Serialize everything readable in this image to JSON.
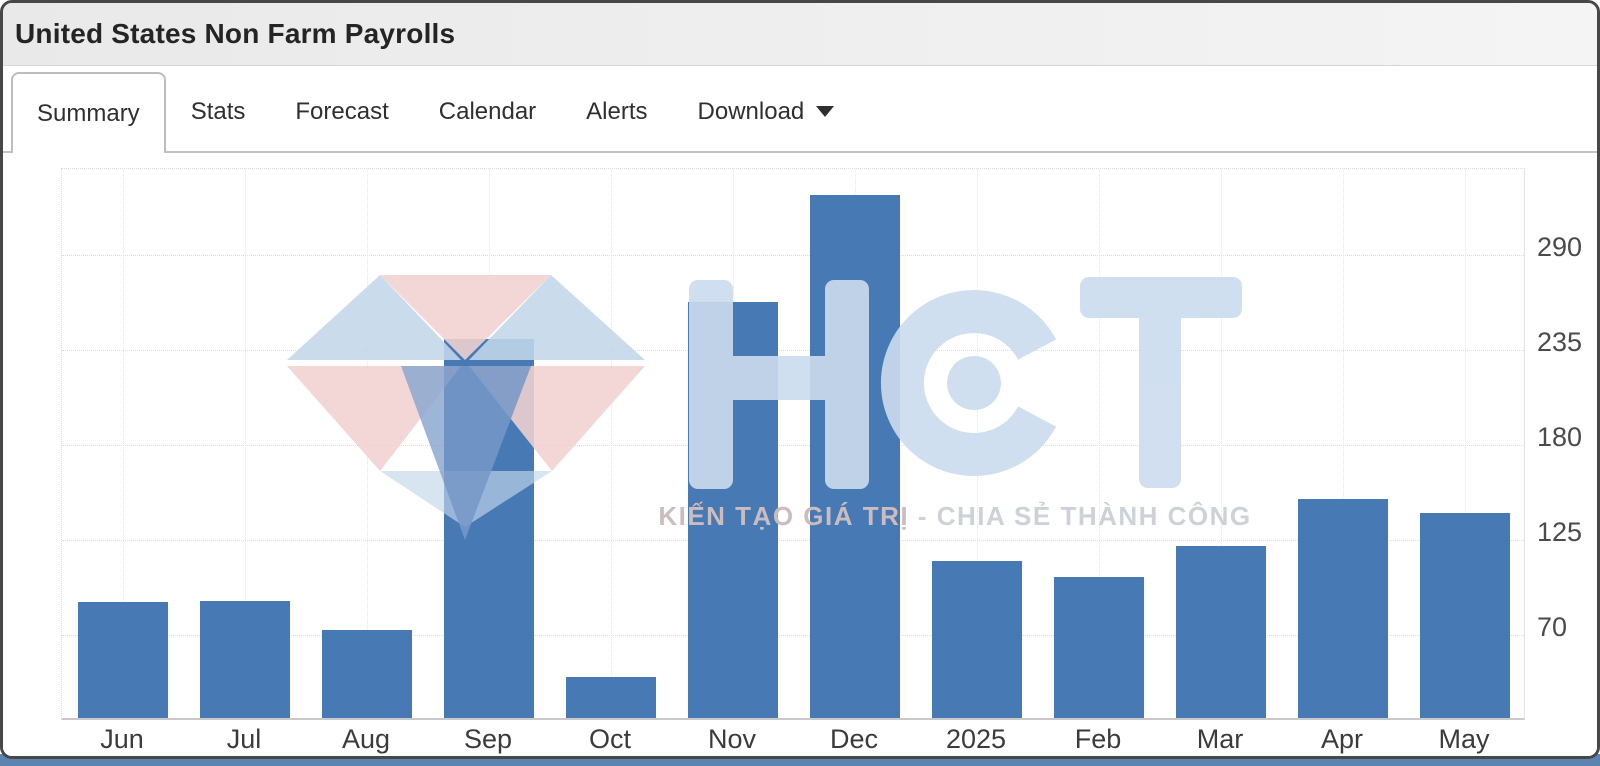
{
  "window": {
    "title": "United States Non Farm Payrolls"
  },
  "tabs": [
    {
      "label": "Summary",
      "active": true
    },
    {
      "label": "Stats",
      "active": false
    },
    {
      "label": "Forecast",
      "active": false
    },
    {
      "label": "Calendar",
      "active": false
    },
    {
      "label": "Alerts",
      "active": false
    },
    {
      "label": "Download",
      "active": false,
      "has_dropdown": true
    }
  ],
  "watermark": {
    "brand": "HCT",
    "tagline_left": "KIẾN TẠO GIÁ TRỊ",
    "tagline_right": "- CHIA SẺ THÀNH CÔNG"
  },
  "chart_data": {
    "type": "bar",
    "title": "United States Non Farm Payrolls",
    "categories": [
      "Jun",
      "Jul",
      "Aug",
      "Sep",
      "Oct",
      "Nov",
      "Dec",
      "2025",
      "Feb",
      "Mar",
      "Apr",
      "May"
    ],
    "values": [
      87,
      88,
      71,
      240,
      44,
      261,
      323,
      111,
      102,
      120,
      147,
      139
    ],
    "xlabel": "",
    "ylabel": "",
    "yticks": [
      70,
      125,
      180,
      235,
      290
    ],
    "ylim": [
      20,
      340
    ],
    "grid": true,
    "legend": false,
    "axis_side": "right",
    "bar_color": "#4779b5"
  },
  "colors": {
    "bar": "#4779b5",
    "frame": "#474747",
    "bottom_strip": "#5b84b1",
    "gem_pink": "#f1d2d1",
    "gem_blue": "#c3d7ea",
    "gem_pavilion": "#7d9cc9",
    "letters": "#ccdcee",
    "tagline_left": "#ccbcbe",
    "tagline_right": "#cdd2d8"
  }
}
